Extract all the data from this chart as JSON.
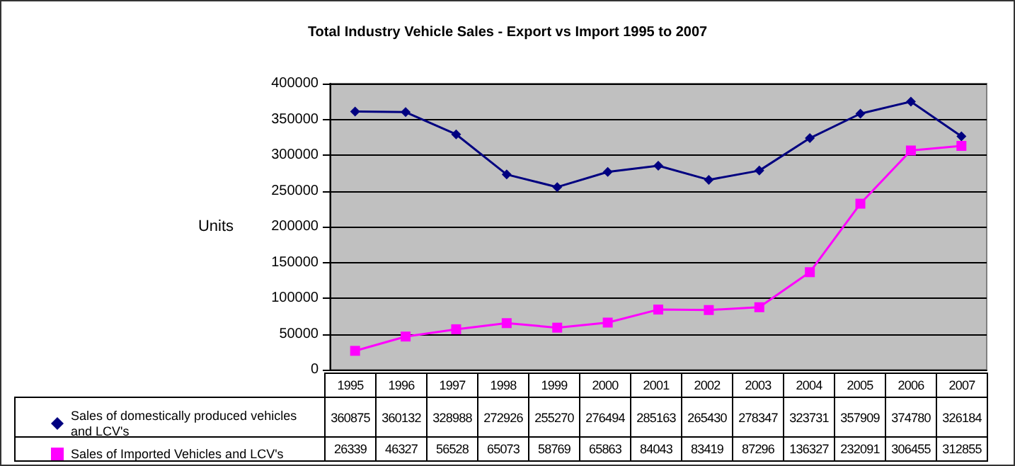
{
  "chart_data": {
    "type": "line",
    "title": "Total Industry Vehicle Sales - Export vs Import 1995 to 2007",
    "ylabel": "Units",
    "categories": [
      "1995",
      "1996",
      "1997",
      "1998",
      "1999",
      "2000",
      "2001",
      "2002",
      "2003",
      "2004",
      "2005",
      "2006",
      "2007"
    ],
    "series": [
      {
        "name": "Sales of domestically produced vehicles and LCV's",
        "color": "#000080",
        "marker": "diamond",
        "values": [
          360875,
          360132,
          328988,
          272926,
          255270,
          276494,
          285163,
          265430,
          278347,
          323731,
          357909,
          374780,
          326184
        ]
      },
      {
        "name": "Sales of Imported Vehicles and LCV's",
        "color": "#ff00ff",
        "marker": "square",
        "values": [
          26339,
          46327,
          56528,
          65073,
          58769,
          65863,
          84043,
          83419,
          87296,
          136327,
          232091,
          306455,
          312855
        ]
      }
    ],
    "ylim": [
      0,
      400000
    ],
    "yticks": [
      0,
      50000,
      100000,
      150000,
      200000,
      250000,
      300000,
      350000,
      400000
    ],
    "grid": "y",
    "legend": "bottom",
    "data_labels": true
  }
}
